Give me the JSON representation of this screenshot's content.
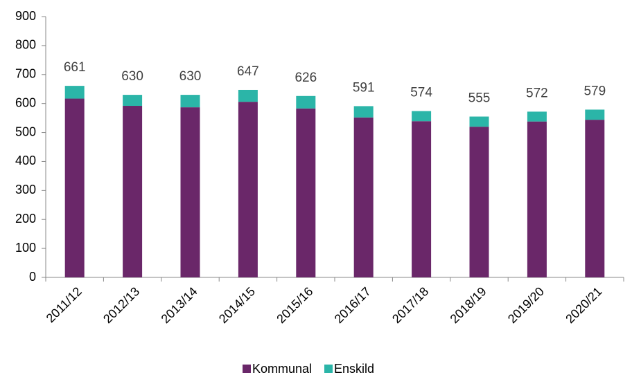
{
  "chart_data": {
    "type": "stacked_bar",
    "categories": [
      "2011/12",
      "2012/13",
      "2013/14",
      "2014/15",
      "2015/16",
      "2016/17",
      "2017/18",
      "2018/19",
      "2019/20",
      "2020/21"
    ],
    "series": [
      {
        "name": "Kommunal",
        "color": "#6a2769",
        "values": [
          617,
          592,
          587,
          606,
          583,
          552,
          539,
          520,
          538,
          544
        ]
      },
      {
        "name": "Enskild",
        "color": "#2bb5a8",
        "values": [
          44,
          38,
          43,
          41,
          43,
          39,
          35,
          35,
          34,
          35
        ]
      }
    ],
    "totals": [
      661,
      630,
      630,
      647,
      626,
      591,
      574,
      555,
      572,
      579
    ],
    "ylim": [
      0,
      900
    ],
    "yticks": [
      0,
      100,
      200,
      300,
      400,
      500,
      600,
      700,
      800,
      900
    ],
    "grid": false,
    "legend": "bottom"
  }
}
